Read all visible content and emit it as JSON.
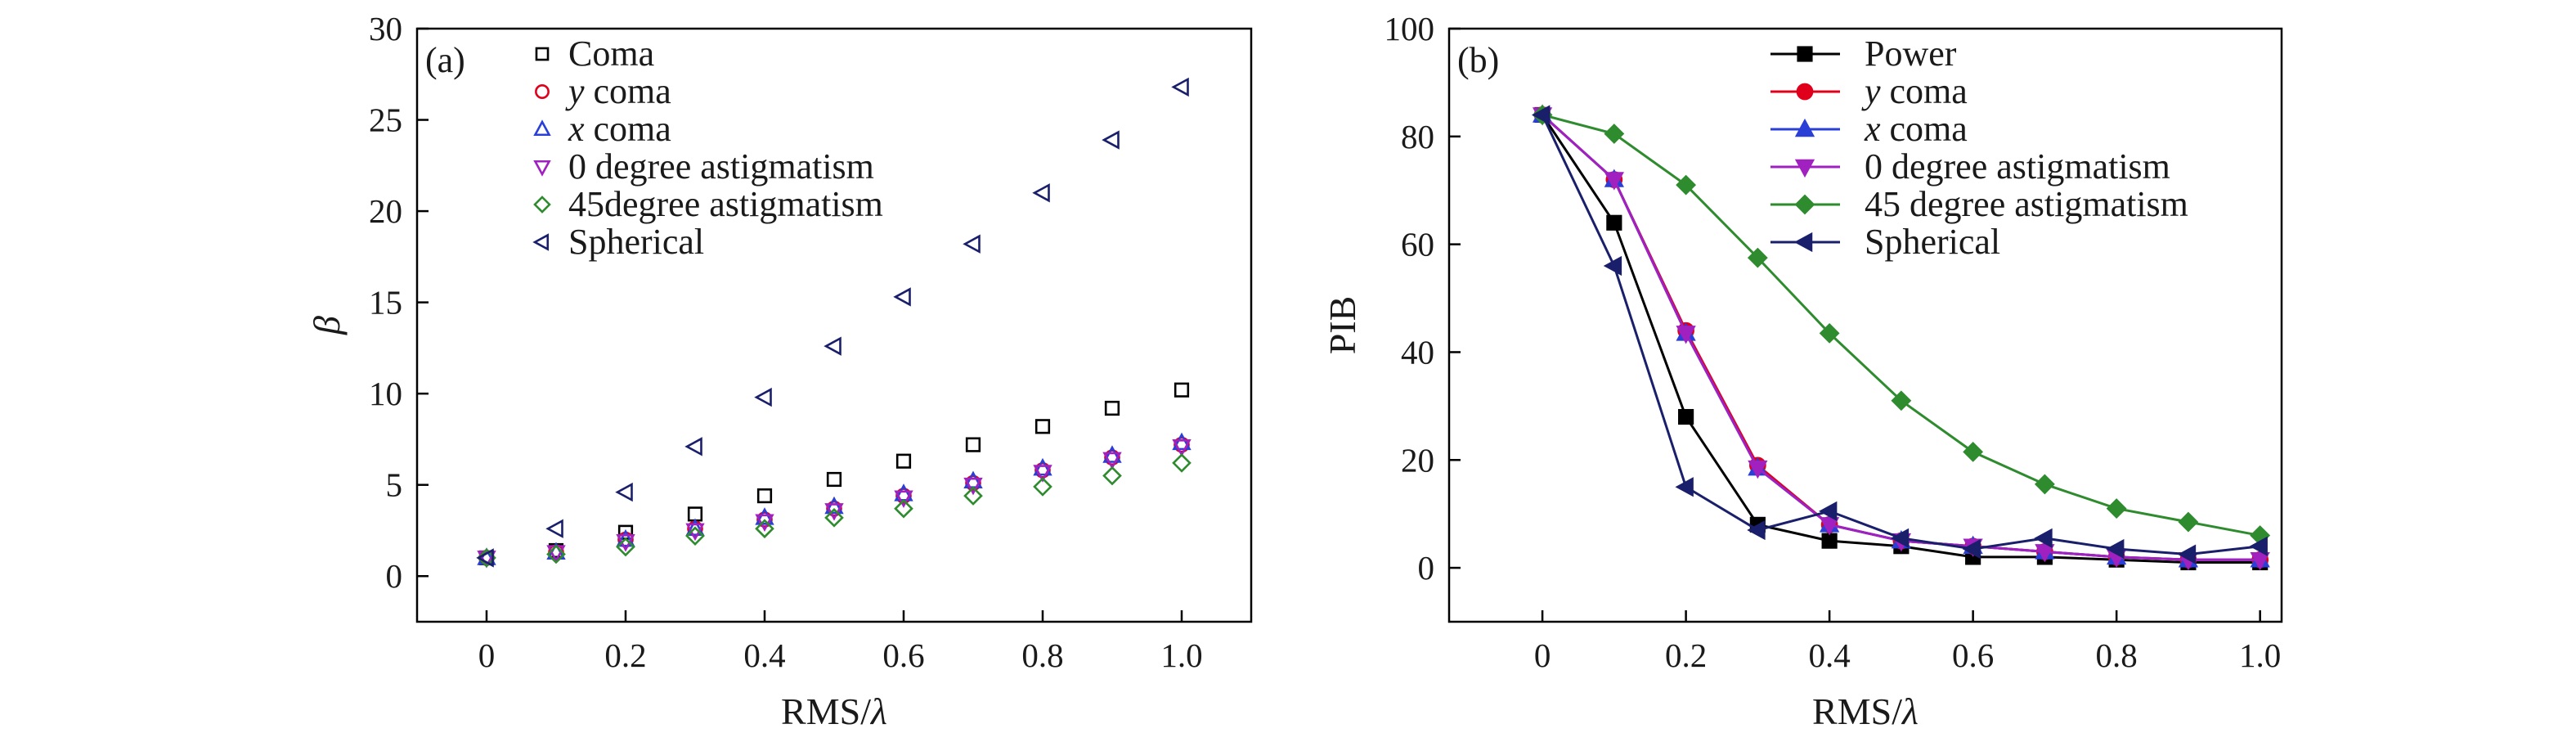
{
  "chart_data": [
    {
      "type": "scatter",
      "panel_label": "(a)",
      "xlabel": "RMS/λ",
      "ylabel": "β",
      "xlim": [
        -0.1,
        1.1
      ],
      "ylim": [
        -2.5,
        30
      ],
      "x_ticks": [
        {
          "v": 0,
          "label": "0"
        },
        {
          "v": 0.2,
          "label": "0.2"
        },
        {
          "v": 0.4,
          "label": "0.4"
        },
        {
          "v": 0.6,
          "label": "0.6"
        },
        {
          "v": 0.8,
          "label": "0.8"
        },
        {
          "v": 1.0,
          "label": "1.0"
        }
      ],
      "y_ticks": [
        {
          "v": 0,
          "label": "0"
        },
        {
          "v": 5,
          "label": "5"
        },
        {
          "v": 10,
          "label": "10"
        },
        {
          "v": 15,
          "label": "15"
        },
        {
          "v": 20,
          "label": "20"
        },
        {
          "v": 25,
          "label": "25"
        },
        {
          "v": 30,
          "label": "30"
        }
      ],
      "legend_position": "top-left",
      "x": [
        0,
        0.1,
        0.2,
        0.3,
        0.4,
        0.5,
        0.6,
        0.7,
        0.8,
        0.9,
        1.0
      ],
      "series": [
        {
          "name": "Coma",
          "marker": "square",
          "color": "#000000",
          "values": [
            1.0,
            1.4,
            2.4,
            3.4,
            4.4,
            5.3,
            6.3,
            7.2,
            8.2,
            9.2,
            10.2
          ]
        },
        {
          "name": "y coma",
          "name_italic": "y",
          "name_rest": " coma",
          "marker": "circle",
          "color": "#e0001b",
          "values": [
            1.0,
            1.3,
            2.0,
            2.6,
            3.1,
            3.7,
            4.4,
            5.1,
            5.8,
            6.5,
            7.2
          ]
        },
        {
          "name": "x coma",
          "name_italic": "x",
          "name_rest": " coma",
          "marker": "triangle-up",
          "color": "#2a3fd6",
          "values": [
            1.0,
            1.3,
            2.0,
            2.6,
            3.2,
            3.8,
            4.5,
            5.2,
            5.9,
            6.6,
            7.3
          ]
        },
        {
          "name": "0 degree astigmatism",
          "marker": "triangle-down",
          "color": "#a020c0",
          "values": [
            1.0,
            1.3,
            1.9,
            2.5,
            3.0,
            3.6,
            4.3,
            5.0,
            5.7,
            6.4,
            7.1
          ]
        },
        {
          "name": "45degree astigmatism",
          "marker": "diamond",
          "color": "#2e8b2e",
          "values": [
            1.0,
            1.2,
            1.6,
            2.2,
            2.6,
            3.2,
            3.7,
            4.4,
            4.9,
            5.5,
            6.2
          ]
        },
        {
          "name": "Spherical",
          "marker": "triangle-left",
          "color": "#1a1f6b",
          "values": [
            1.0,
            2.6,
            4.6,
            7.1,
            9.8,
            12.6,
            15.3,
            18.2,
            21.0,
            23.9,
            26.8
          ]
        }
      ]
    },
    {
      "type": "line",
      "panel_label": "(b)",
      "xlabel": "RMS/λ",
      "ylabel": "PIB",
      "xlim": [
        -0.13,
        1.03
      ],
      "ylim": [
        -10,
        100
      ],
      "x_ticks": [
        {
          "v": 0,
          "label": "0"
        },
        {
          "v": 0.2,
          "label": "0.2"
        },
        {
          "v": 0.4,
          "label": "0.4"
        },
        {
          "v": 0.6,
          "label": "0.6"
        },
        {
          "v": 0.8,
          "label": "0.8"
        },
        {
          "v": 1.0,
          "label": "1.0"
        }
      ],
      "y_ticks": [
        {
          "v": 0,
          "label": "0"
        },
        {
          "v": 20,
          "label": "20"
        },
        {
          "v": 40,
          "label": "40"
        },
        {
          "v": 60,
          "label": "60"
        },
        {
          "v": 80,
          "label": "80"
        },
        {
          "v": 100,
          "label": "100"
        }
      ],
      "legend_position": "top-center",
      "x": [
        0,
        0.1,
        0.2,
        0.3,
        0.4,
        0.5,
        0.6,
        0.7,
        0.8,
        0.9,
        1.0
      ],
      "series": [
        {
          "name": "Power",
          "marker": "square",
          "color": "#000000",
          "values": [
            84,
            64,
            28,
            8,
            5,
            4,
            2,
            2,
            1.5,
            1,
            1
          ]
        },
        {
          "name": "y coma",
          "name_italic": "y",
          "name_rest": " coma",
          "marker": "circle",
          "color": "#e0001b",
          "values": [
            84,
            72,
            44,
            19,
            8,
            5,
            4,
            3,
            2,
            1.5,
            1.5
          ]
        },
        {
          "name": "x coma",
          "name_italic": "x",
          "name_rest": " coma",
          "marker": "triangle-up",
          "color": "#2a3fd6",
          "values": [
            84,
            72,
            43.5,
            18.5,
            8,
            5,
            4,
            3,
            2,
            1.5,
            1.5
          ]
        },
        {
          "name": "0 degree astigmatism",
          "marker": "triangle-down",
          "color": "#a020c0",
          "values": [
            84,
            72,
            43.5,
            18.5,
            8,
            5,
            4,
            3,
            2,
            1.5,
            1.5
          ]
        },
        {
          "name": "45 degree astigmatism",
          "marker": "diamond",
          "color": "#2e8b2e",
          "values": [
            84,
            80.5,
            71,
            57.5,
            43.5,
            31,
            21.5,
            15.5,
            11,
            8.5,
            6
          ]
        },
        {
          "name": "Spherical",
          "marker": "triangle-left",
          "color": "#1a1f6b",
          "values": [
            84,
            56,
            15,
            7,
            10.5,
            5.5,
            3.5,
            5.5,
            3.5,
            2.5,
            4
          ]
        }
      ]
    }
  ]
}
